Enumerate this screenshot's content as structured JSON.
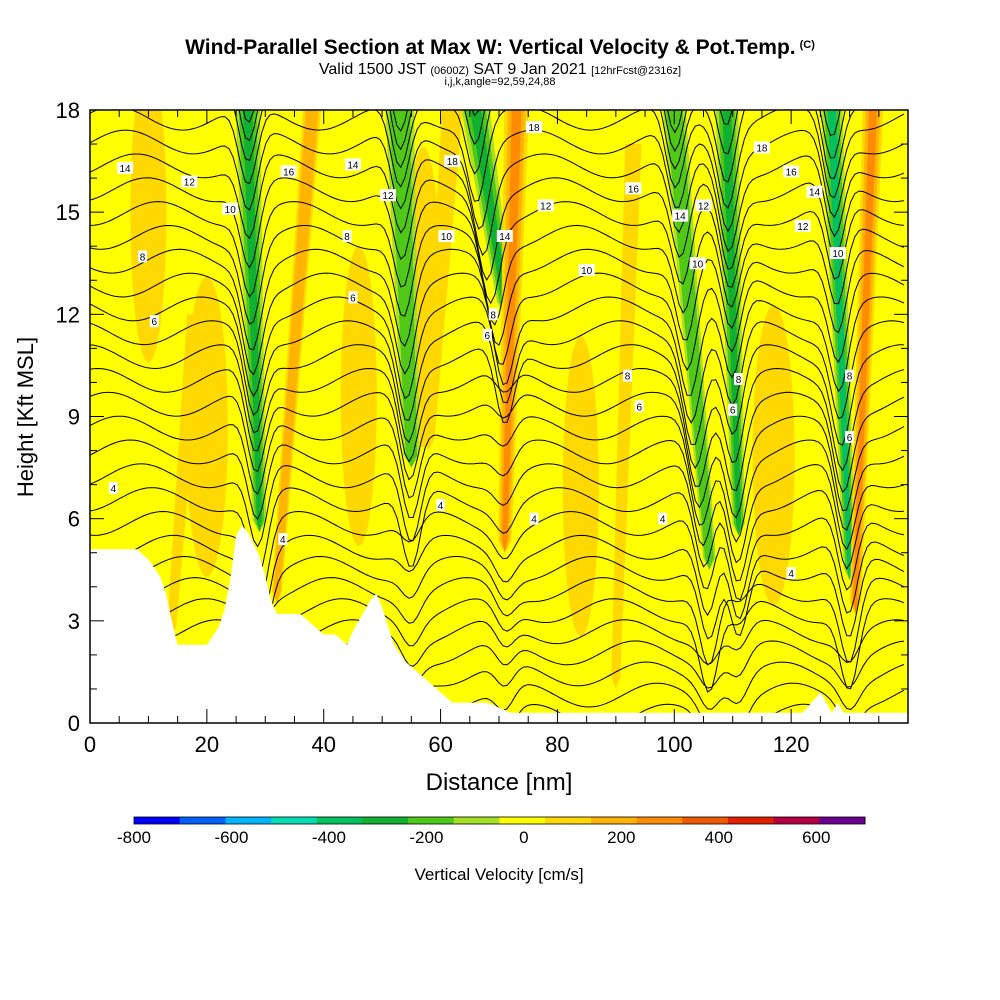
{
  "title": "Wind-Parallel Section at Max W: Vertical Velocity & Pot.Temp.",
  "title_mark": "(C)",
  "subtitle_main": "Valid 1500 JST",
  "subtitle_utc": "(0600Z)",
  "subtitle_date": "SAT 9 Jan 2021",
  "subtitle_fcst": "[12hrFcst@2316z]",
  "subtitle2": "i,j,k,angle=92,59,24,88",
  "chart_data": {
    "type": "heatmap",
    "xlabel": "Distance [nm]",
    "ylabel": "Height [Kft MSL]",
    "xlim": [
      0,
      140
    ],
    "ylim": [
      0,
      18
    ],
    "x_ticks": [
      0,
      20,
      40,
      60,
      80,
      100,
      120
    ],
    "y_ticks": [
      0,
      3,
      6,
      9,
      12,
      15,
      18
    ],
    "x_tick_labels": [
      "0",
      "20",
      "40",
      "60",
      "80",
      "100",
      "120"
    ],
    "y_tick_labels": [
      "0",
      "3",
      "6",
      "9",
      "12",
      "15",
      "18"
    ],
    "colorbar": {
      "label": "Vertical Velocity [cm/s]",
      "ticks": [
        "-800",
        "-600",
        "-400",
        "-200",
        "0",
        "200",
        "400",
        "600"
      ],
      "tick_values": [
        -800,
        -600,
        -400,
        -200,
        0,
        200,
        400,
        600
      ],
      "range": [
        -800,
        700
      ],
      "step": 100,
      "colors": [
        "#0000ff",
        "#0060ff",
        "#00b4ff",
        "#00dcb4",
        "#00c060",
        "#10b030",
        "#50c818",
        "#a8e028",
        "#ffff00",
        "#ffd800",
        "#ffb400",
        "#ff8c00",
        "#f05a00",
        "#e01e00",
        "#b40040",
        "#6a0090"
      ]
    },
    "terrain_height_kft": [
      [
        0,
        5.1
      ],
      [
        4,
        5.1
      ],
      [
        8,
        5.1
      ],
      [
        10,
        4.8
      ],
      [
        12,
        4.3
      ],
      [
        13,
        3.8
      ],
      [
        14,
        3
      ],
      [
        15,
        2.3
      ],
      [
        17,
        2.3
      ],
      [
        20,
        2.3
      ],
      [
        22,
        2.8
      ],
      [
        23,
        3.3
      ],
      [
        24,
        4.2
      ],
      [
        25,
        5.5
      ],
      [
        26,
        5.8
      ],
      [
        27,
        5.6
      ],
      [
        29,
        4.9
      ],
      [
        30,
        4.3
      ],
      [
        31,
        3.6
      ],
      [
        32,
        3.2
      ],
      [
        34,
        3.2
      ],
      [
        36,
        3.2
      ],
      [
        38,
        2.9
      ],
      [
        40,
        2.6
      ],
      [
        42,
        2.6
      ],
      [
        44,
        2.3
      ],
      [
        45,
        2.7
      ],
      [
        47,
        3.3
      ],
      [
        48,
        3.6
      ],
      [
        49,
        3.8
      ],
      [
        50,
        3.4
      ],
      [
        52,
        2.3
      ],
      [
        54,
        1.8
      ],
      [
        56,
        1.5
      ],
      [
        58,
        1.2
      ],
      [
        60,
        0.9
      ],
      [
        62,
        0.6
      ],
      [
        64,
        0.6
      ],
      [
        68,
        0.6
      ],
      [
        72,
        0.3
      ],
      [
        80,
        0.3
      ],
      [
        100,
        0.3
      ],
      [
        115,
        0.3
      ],
      [
        122,
        0.3
      ],
      [
        124,
        0.7
      ],
      [
        125,
        0.9
      ],
      [
        126,
        0.6
      ],
      [
        127,
        0.3
      ],
      [
        128,
        0.6
      ],
      [
        129,
        0.3
      ],
      [
        140,
        0.3
      ]
    ],
    "w_features": [
      {
        "x_top": 27,
        "x_bottom": 29,
        "top": 18,
        "bottom": 5.6,
        "width": 3.0,
        "value": -220
      },
      {
        "x_top": 53,
        "x_bottom": 55,
        "top": 18,
        "bottom": 7.5,
        "width": 3.5,
        "value": -200
      },
      {
        "x_top": 66,
        "x_bottom": 71,
        "top": 18,
        "bottom": 12,
        "width": 3.5,
        "value": -280
      },
      {
        "x_top": 100,
        "x_bottom": 106,
        "top": 18,
        "bottom": 4.5,
        "width": 2.8,
        "value": -180
      },
      {
        "x_top": 109,
        "x_bottom": 111,
        "top": 18,
        "bottom": 5.5,
        "width": 2.8,
        "value": -300
      },
      {
        "x_top": 127,
        "x_bottom": 130,
        "top": 18,
        "bottom": 4.2,
        "width": 2.6,
        "value": -350
      },
      {
        "x_top": 38,
        "x_bottom": 32,
        "top": 18,
        "bottom": 3.5,
        "width": 2.2,
        "value": 220
      },
      {
        "x_top": 62,
        "x_bottom": 58,
        "top": 18,
        "bottom": 8,
        "width": 2.5,
        "value": 190
      },
      {
        "x_top": 73,
        "x_bottom": 71,
        "top": 18,
        "bottom": 5,
        "width": 3.0,
        "value": 300
      },
      {
        "x_top": 134,
        "x_bottom": 131,
        "top": 18,
        "bottom": 3.2,
        "width": 2.5,
        "value": 330
      },
      {
        "x_top": 93,
        "x_bottom": 90,
        "top": 17,
        "bottom": 1,
        "width": 2.0,
        "value": 120
      },
      {
        "x_top": 18,
        "x_bottom": 14,
        "top": 12,
        "bottom": 2.5,
        "width": 2.0,
        "value": 130
      }
    ],
    "theta_contour_labels": [
      {
        "text": "14",
        "x": 6,
        "y": 16.3
      },
      {
        "text": "12",
        "x": 17,
        "y": 15.9
      },
      {
        "text": "10",
        "x": 24,
        "y": 15.1
      },
      {
        "text": "16",
        "x": 34,
        "y": 16.2
      },
      {
        "text": "14",
        "x": 45,
        "y": 16.4
      },
      {
        "text": "12",
        "x": 51,
        "y": 15.5
      },
      {
        "text": "18",
        "x": 62,
        "y": 16.5
      },
      {
        "text": "8",
        "x": 9,
        "y": 13.7
      },
      {
        "text": "8",
        "x": 44,
        "y": 14.3
      },
      {
        "text": "10",
        "x": 61,
        "y": 14.3
      },
      {
        "text": "14",
        "x": 71,
        "y": 14.3
      },
      {
        "text": "18",
        "x": 76,
        "y": 17.5
      },
      {
        "text": "12",
        "x": 78,
        "y": 15.2
      },
      {
        "text": "16",
        "x": 93,
        "y": 15.7
      },
      {
        "text": "14",
        "x": 101,
        "y": 14.9
      },
      {
        "text": "12",
        "x": 105,
        "y": 15.2
      },
      {
        "text": "18",
        "x": 115,
        "y": 16.9
      },
      {
        "text": "16",
        "x": 120,
        "y": 16.2
      },
      {
        "text": "14",
        "x": 124,
        "y": 15.6
      },
      {
        "text": "12",
        "x": 122,
        "y": 14.6
      },
      {
        "text": "10",
        "x": 128,
        "y": 13.8
      },
      {
        "text": "10",
        "x": 85,
        "y": 13.3
      },
      {
        "text": "10",
        "x": 104,
        "y": 13.5
      },
      {
        "text": "6",
        "x": 11,
        "y": 11.8
      },
      {
        "text": "6",
        "x": 45,
        "y": 12.5
      },
      {
        "text": "8",
        "x": 69,
        "y": 12.0
      },
      {
        "text": "6",
        "x": 68,
        "y": 11.4
      },
      {
        "text": "8",
        "x": 92,
        "y": 10.2
      },
      {
        "text": "6",
        "x": 94,
        "y": 9.3
      },
      {
        "text": "8",
        "x": 111,
        "y": 10.1
      },
      {
        "text": "6",
        "x": 110,
        "y": 9.2
      },
      {
        "text": "8",
        "x": 130,
        "y": 10.2
      },
      {
        "text": "6",
        "x": 130,
        "y": 8.4
      },
      {
        "text": "4",
        "x": 4,
        "y": 6.9
      },
      {
        "text": "4",
        "x": 33,
        "y": 5.4
      },
      {
        "text": "4",
        "x": 60,
        "y": 6.4
      },
      {
        "text": "4",
        "x": 76,
        "y": 6.0
      },
      {
        "text": "4",
        "x": 98,
        "y": 6.0
      },
      {
        "text": "4",
        "x": 120,
        "y": 4.4
      }
    ]
  }
}
